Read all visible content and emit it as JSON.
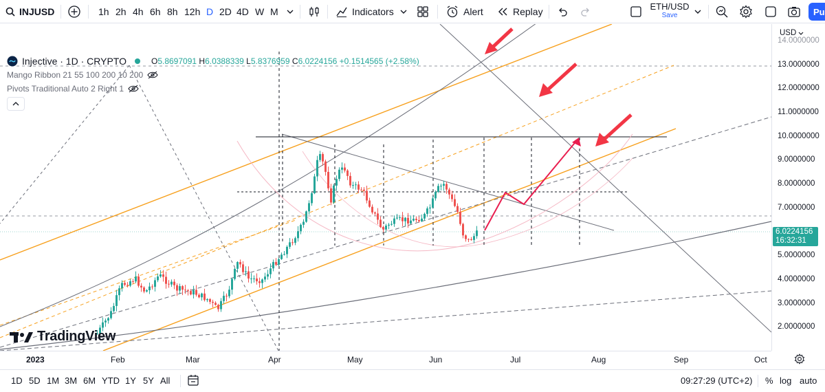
{
  "toolbar": {
    "symbol": "INJUSD",
    "intervals": [
      "1h",
      "2h",
      "4h",
      "6h",
      "8h",
      "12h",
      "D",
      "2D",
      "4D",
      "W",
      "M"
    ],
    "active_interval": "D",
    "indicators_label": "Indicators",
    "alert_label": "Alert",
    "replay_label": "Replay",
    "compare_symbol": "ETH/USD",
    "compare_sub": "Save",
    "publish_label": "Pu"
  },
  "legend": {
    "title": "Injective · 1D · CRYPTO",
    "open_label": "O",
    "open": "5.8697091",
    "high_label": "H",
    "high": "6.0388339",
    "low_label": "L",
    "low": "5.8376959",
    "close_label": "C",
    "close": "6.0224156",
    "change": "+0.1514565 (+2.58%)",
    "indicator_1": "Mango Ribbon 21 55 100 200 10 200",
    "indicator_2": "Pivots Traditional Auto 2 Right 1"
  },
  "price_axis": {
    "currency": "USD",
    "ticks": [
      "14.0000000",
      "13.0000000",
      "12.0000000",
      "11.0000000",
      "10.0000000",
      "9.0000000",
      "8.0000000",
      "7.0000000",
      "5.0000000",
      "4.0000000",
      "3.0000000",
      "2.0000000"
    ],
    "current_price": "6.0224156",
    "countdown": "16:32:31"
  },
  "time_axis": {
    "labels": [
      "2023",
      "Feb",
      "Mar",
      "Apr",
      "May",
      "Jun",
      "Jul",
      "Aug",
      "Sep",
      "Oct"
    ]
  },
  "watermark": "TradingView",
  "bottom_bar": {
    "ranges": [
      "1D",
      "5D",
      "1M",
      "3M",
      "6M",
      "YTD",
      "1Y",
      "5Y",
      "All"
    ],
    "clock": "09:27:29 (UTC+2)",
    "percent_label": "%",
    "log_label": "log",
    "auto_label": "auto"
  },
  "colors": {
    "up": "#26a69a",
    "down": "#ef5350",
    "accent": "#2962ff",
    "channel": "#f7a01d",
    "arrow": "#e91e4f"
  },
  "icons": [
    "search-icon",
    "plus-circle-icon",
    "candles-icon",
    "indicators-icon",
    "templates-icon",
    "alert-icon",
    "replay-icon",
    "undo-icon",
    "redo-icon",
    "checkbox-icon",
    "chevron-down-icon",
    "quick-search-icon",
    "settings-icon",
    "fullscreen-icon",
    "camera-icon",
    "eye-off-icon",
    "chevron-up-icon",
    "date-range-icon",
    "gear-icon"
  ]
}
